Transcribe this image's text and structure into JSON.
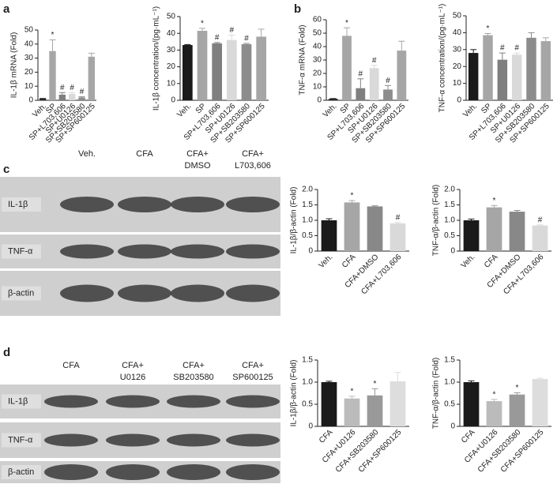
{
  "panels": [
    "a",
    "b",
    "c",
    "d"
  ],
  "chart_data": [
    {
      "type": "bar",
      "y_label": "IL-1β mRNA (Fold)",
      "categories": [
        "Veh.",
        "SP",
        "SP+L703,606",
        "SP+U0126",
        "SP+SB203580",
        "SP+SP600125"
      ],
      "values": [
        1,
        35,
        4,
        4.5,
        2,
        31
      ],
      "errors": [
        0.3,
        8,
        1.5,
        1,
        0.5,
        2.5
      ],
      "colors": [
        "#1a1a1a",
        "#a6a6a6",
        "#7f7f7f",
        "#d9d9d9",
        "#8c8c8c",
        "#a6a6a6"
      ],
      "annotations": [
        null,
        "*",
        "#",
        "#",
        "#",
        null
      ],
      "ylim": [
        0,
        50
      ],
      "yticks": [
        0,
        10,
        20,
        30,
        40,
        50
      ]
    },
    {
      "type": "bar",
      "y_label": "IL-1β concentration/(pg·mL⁻¹)",
      "categories": [
        "Veh.",
        "SP",
        "SP+L703,606",
        "SP+U0126",
        "SP+SB203580",
        "SP+SP600125"
      ],
      "values": [
        33,
        41.5,
        34,
        36,
        33.5,
        38
      ],
      "errors": [
        0.3,
        1.5,
        0.5,
        3,
        0.5,
        4.5
      ],
      "colors": [
        "#1a1a1a",
        "#a6a6a6",
        "#7f7f7f",
        "#d9d9d9",
        "#8c8c8c",
        "#a6a6a6"
      ],
      "annotations": [
        null,
        "*",
        "#",
        "#",
        "#",
        null
      ],
      "ylim": [
        0,
        50
      ],
      "yticks": [
        0,
        10,
        20,
        30,
        40,
        50
      ]
    },
    {
      "type": "bar",
      "y_label": "TNF-α mRNA (Fold)",
      "categories": [
        "Veh.",
        "SP",
        "SP+L703,606",
        "SP+U0126",
        "SP+SB203580",
        "SP+SP600125"
      ],
      "values": [
        1,
        48,
        9,
        24,
        8,
        37
      ],
      "errors": [
        0.3,
        6,
        7,
        2,
        3,
        7
      ],
      "colors": [
        "#1a1a1a",
        "#a6a6a6",
        "#7f7f7f",
        "#d9d9d9",
        "#8c8c8c",
        "#a6a6a6"
      ],
      "annotations": [
        null,
        "*",
        "#",
        "#",
        "#",
        null
      ],
      "ylim": [
        0,
        60
      ],
      "yticks": [
        0,
        10,
        20,
        30,
        40,
        50,
        60
      ]
    },
    {
      "type": "bar",
      "y_label": "TNF-α concentration/(pg·mL⁻¹)",
      "categories": [
        "Veh.",
        "SP",
        "SP+L703,606",
        "SP+U0126",
        "SP+SB203580",
        "SP+SP600125"
      ],
      "values": [
        28,
        38.5,
        24,
        27,
        37,
        35
      ],
      "errors": [
        2,
        1,
        4,
        1,
        3,
        2
      ],
      "colors": [
        "#1a1a1a",
        "#a6a6a6",
        "#7f7f7f",
        "#d9d9d9",
        "#8c8c8c",
        "#a6a6a6"
      ],
      "annotations": [
        null,
        "*",
        "#",
        "#",
        null,
        null
      ],
      "ylim": [
        0,
        50
      ],
      "yticks": [
        0,
        10,
        20,
        30,
        40,
        50
      ]
    },
    {
      "type": "bar",
      "y_label": "IL-1β/β-actin (Fold)",
      "categories": [
        "Veh.",
        "CFA",
        "CFA+DMSO",
        "CFA+L703,606"
      ],
      "values": [
        1.0,
        1.58,
        1.45,
        0.9
      ],
      "errors": [
        0.05,
        0.06,
        0.02,
        0.03
      ],
      "colors": [
        "#1a1a1a",
        "#a6a6a6",
        "#888888",
        "#d9d9d9"
      ],
      "annotations": [
        null,
        "*",
        null,
        "#"
      ],
      "ylim": [
        0,
        2
      ],
      "yticks": [
        0,
        0.5,
        {
          "value": 1,
          "label": "1.0"
        },
        1.5,
        {
          "value": 2,
          "label": "2.0"
        }
      ]
    },
    {
      "type": "bar",
      "y_label": "TNF-α/β-actin (Fold)",
      "categories": [
        "Veh.",
        "CFA",
        "CFA+DMSO",
        "CFA+L703,606"
      ],
      "values": [
        1.0,
        1.42,
        1.28,
        0.83
      ],
      "errors": [
        0.04,
        0.06,
        0.04,
        0.02
      ],
      "colors": [
        "#1a1a1a",
        "#a6a6a6",
        "#888888",
        "#d9d9d9"
      ],
      "annotations": [
        null,
        "*",
        null,
        "#"
      ],
      "ylim": [
        0,
        2
      ],
      "yticks": [
        0,
        0.5,
        {
          "value": 1,
          "label": "1.0"
        },
        1.5,
        {
          "value": 2,
          "label": "2.0"
        }
      ]
    },
    {
      "type": "bar",
      "y_label": "IL-1β/β-actin (Fold)",
      "categories": [
        "CFA",
        "CFA+U0126",
        "CFA+SB203580",
        "CFA+SP600125"
      ],
      "values": [
        1.0,
        0.63,
        0.7,
        1.02
      ],
      "errors": [
        0.02,
        0.05,
        0.15,
        0.2
      ],
      "colors": [
        "#1a1a1a",
        "#bbbbbb",
        "#999999",
        "#dddddd"
      ],
      "annotations": [
        null,
        "*",
        "*",
        null
      ],
      "ylim": [
        0,
        1.5
      ],
      "yticks": [
        0,
        0.5,
        {
          "value": 1,
          "label": "1.0"
        },
        1.5
      ]
    },
    {
      "type": "bar",
      "y_label": "TNF-α/β-actin (Fold)",
      "categories": [
        "CFA",
        "CFA+U0126",
        "CFA+SB203580",
        "CFA+SP600125"
      ],
      "values": [
        1.0,
        0.57,
        0.72,
        1.07
      ],
      "errors": [
        0.03,
        0.04,
        0.04,
        0.02
      ],
      "colors": [
        "#1a1a1a",
        "#bbbbbb",
        "#999999",
        "#dddddd"
      ],
      "annotations": [
        null,
        "*",
        "*",
        null
      ],
      "ylim": [
        0,
        1.5
      ],
      "yticks": [
        0,
        0.5,
        {
          "value": 1,
          "label": "1.0"
        },
        1.5
      ]
    }
  ],
  "blots": [
    {
      "columns": [
        [
          "Veh."
        ],
        [
          "CFA"
        ],
        [
          "CFA+",
          "DMSO"
        ],
        [
          "CFA+",
          "L703,606"
        ]
      ],
      "rows": [
        "IL-1β",
        "TNF-α",
        "β-actin"
      ]
    },
    {
      "columns": [
        [
          "CFA"
        ],
        [
          "CFA+",
          "U0126"
        ],
        [
          "CFA+",
          "SB203580"
        ],
        [
          "CFA+",
          "SP600125"
        ]
      ],
      "rows": [
        "IL-1β",
        "TNF-α",
        "β-actin"
      ]
    }
  ]
}
